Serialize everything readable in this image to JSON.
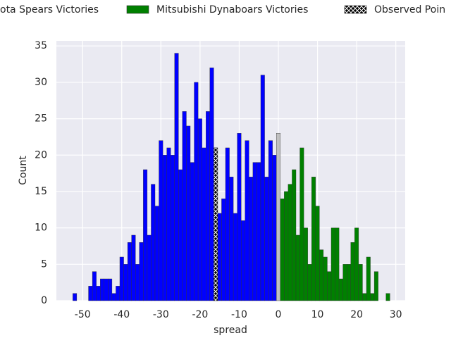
{
  "chart_data": {
    "type": "histogram",
    "xlabel": "spread",
    "ylabel": "Count",
    "xlim": [
      -56.7,
      32.4
    ],
    "ylim": [
      0,
      35.7
    ],
    "xticks": [
      -50,
      -40,
      -30,
      -20,
      -10,
      0,
      10,
      20,
      30
    ],
    "yticks": [
      0,
      5,
      10,
      15,
      20,
      25,
      30,
      35
    ],
    "grid": true,
    "series": [
      {
        "name": "ota Spears Victories",
        "color": "#0000ff",
        "bins": [
          -52.5,
          -51.5,
          -50.5,
          -49.5,
          -48.5,
          -47.5,
          -46.5,
          -45.5,
          -44.5,
          -43.5,
          -42.5,
          -41.5,
          -40.5,
          -39.5,
          -38.5,
          -37.5,
          -36.5,
          -35.5,
          -34.5,
          -33.5,
          -32.5,
          -31.5,
          -30.5,
          -29.5,
          -28.5,
          -27.5,
          -26.5,
          -25.5,
          -24.5,
          -23.5,
          -22.5,
          -21.5,
          -20.5,
          -19.5,
          -18.5,
          -17.5,
          -16.5,
          -15.5,
          -14.5,
          -13.5,
          -12.5,
          -11.5,
          -10.5,
          -9.5,
          -8.5,
          -7.5,
          -6.5,
          -5.5,
          -4.5,
          -3.5,
          -2.5,
          -1.5,
          -0.5
        ],
        "counts": [
          1,
          0,
          0,
          0,
          2,
          4,
          2,
          3,
          3,
          3,
          1,
          2,
          6,
          5,
          8,
          9,
          5,
          8,
          18,
          9,
          16,
          13,
          22,
          20,
          21,
          20,
          34,
          18,
          26,
          24,
          19,
          30,
          25,
          21,
          26,
          32,
          21,
          12,
          14,
          21,
          17,
          12,
          23,
          11,
          22,
          17,
          19,
          19,
          31,
          17,
          22,
          20
        ]
      },
      {
        "name": "Mitsubishi Dynaboars Victories",
        "color": "#008000",
        "bins": [
          0.5,
          1.5,
          2.5,
          3.5,
          4.5,
          5.5,
          6.5,
          7.5,
          8.5,
          9.5,
          10.5,
          11.5,
          12.5,
          13.5,
          14.5,
          15.5,
          16.5,
          17.5,
          18.5,
          19.5,
          20.5,
          21.5,
          22.5,
          23.5,
          24.5,
          25.5,
          26.5,
          27.5,
          28.5
        ],
        "counts": [
          14,
          15,
          16,
          18,
          9,
          21,
          10,
          5,
          17,
          13,
          7,
          6,
          4,
          10,
          10,
          3,
          5,
          5,
          8,
          10,
          5,
          1,
          6,
          1,
          4,
          0,
          0,
          1
        ]
      },
      {
        "name": "Observed Poin",
        "color": "#000000",
        "hatch": true,
        "bins": [
          -16.5,
          -15.5
        ],
        "counts": [
          21
        ]
      },
      {
        "color": "#c0c0c0",
        "bins": [
          -0.5,
          0.5
        ],
        "counts": [
          23
        ]
      }
    ]
  }
}
